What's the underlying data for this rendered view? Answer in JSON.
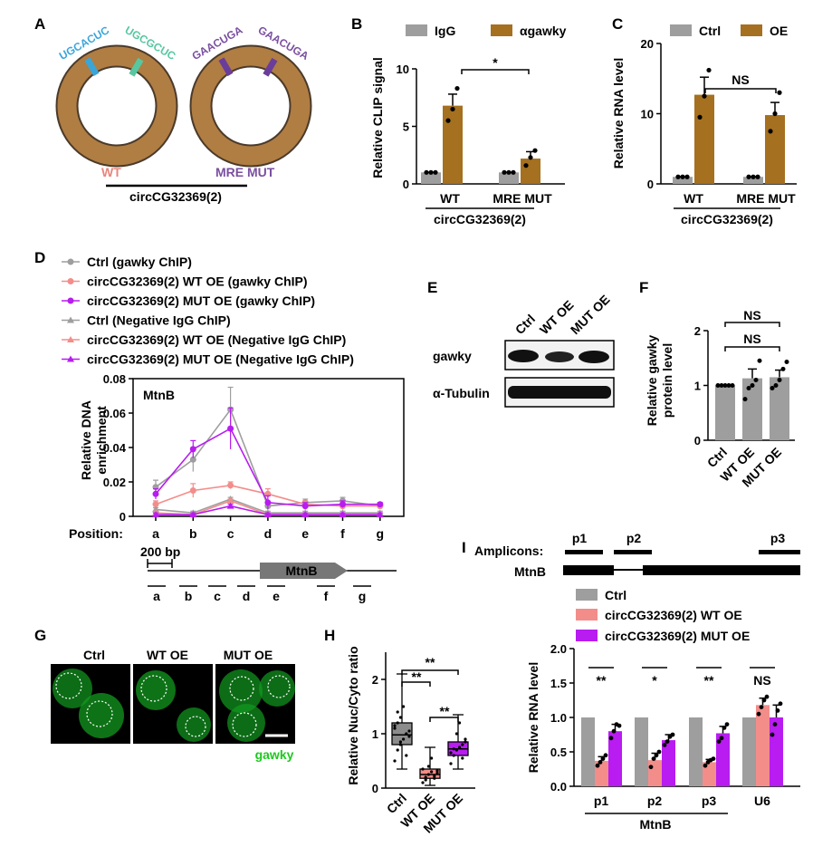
{
  "panels": {
    "A": "A",
    "B": "B",
    "C": "C",
    "D": "D",
    "E": "E",
    "F": "F",
    "G": "G",
    "H": "H",
    "I": "I"
  },
  "panelA": {
    "wt_seq1": "UGCACUC",
    "wt_seq2": "UGCGCUC",
    "mut_seq1": "GAACUGA",
    "mut_seq2": "GAACUGA",
    "wt_label": "WT",
    "mut_label": "MRE MUT",
    "construct": "circCG32369(2)",
    "colors": {
      "ring": "#b07d43",
      "ring_stroke": "#4a3a2a",
      "seed1": "#3aa6d8",
      "seed2": "#57c7a0",
      "mut_seed": "#6a3d9a",
      "wt_text": "#e8857c",
      "mut_text": "#7b4fa0"
    }
  },
  "colors": {
    "gray": "#9e9e9e",
    "brown": "#a5701f",
    "pink": "#f38d8a",
    "purple": "#b81cf0",
    "green": "#1ec81e"
  },
  "chart_data": [
    {
      "id": "B",
      "type": "bar",
      "ylabel": "Relative CLIP signal",
      "ylim": [
        0,
        10
      ],
      "yticks": [
        0,
        5,
        10
      ],
      "categories": [
        "WT",
        "MRE MUT"
      ],
      "group_label": "circCG32369(2)",
      "series": [
        {
          "name": "IgG",
          "values": [
            1,
            1
          ],
          "err": [
            0,
            0
          ]
        },
        {
          "name": "αgawky",
          "values": [
            6.8,
            2.2
          ],
          "err": [
            1.0,
            0.6
          ]
        }
      ],
      "significance": [
        {
          "label": "*"
        }
      ]
    },
    {
      "id": "C",
      "type": "bar",
      "ylabel": "Relative RNA level",
      "ylim": [
        0,
        20
      ],
      "yticks": [
        0,
        10,
        20
      ],
      "categories": [
        "WT",
        "MRE MUT"
      ],
      "group_label": "circCG32369(2)",
      "series": [
        {
          "name": "Ctrl",
          "values": [
            1,
            1
          ],
          "err": [
            0,
            0
          ]
        },
        {
          "name": "OE",
          "values": [
            12.7,
            9.8
          ],
          "err": [
            2.5,
            1.8
          ]
        }
      ],
      "significance": [
        {
          "label": "NS"
        }
      ]
    },
    {
      "id": "D",
      "type": "line",
      "title": "MtnB",
      "ylabel": "Relative DNA enrichment",
      "ylim": [
        0,
        0.08
      ],
      "yticks": [
        "0",
        "0.02",
        "0.04",
        "0.06",
        "0.08"
      ],
      "x": [
        "a",
        "b",
        "c",
        "d",
        "e",
        "f",
        "g"
      ],
      "xlabel": "Position:",
      "series": [
        {
          "name": "Ctrl (gawky ChIP)",
          "values": [
            0.017,
            0.033,
            0.062,
            0.006,
            0.008,
            0.009,
            0.006
          ],
          "err": [
            0.004,
            0.007,
            0.013,
            0.002,
            0.002,
            0.002,
            0.001
          ]
        },
        {
          "name": "circCG32369(2) WT OE (gawky ChIP)",
          "values": [
            0.007,
            0.015,
            0.018,
            0.013,
            0.007,
            0.006,
            0.006
          ],
          "err": [
            0.002,
            0.004,
            0.002,
            0.003,
            0.002,
            0.002,
            0.001
          ]
        },
        {
          "name": "circCG32369(2) MUT OE (gawky ChIP)",
          "values": [
            0.013,
            0.039,
            0.051,
            0.008,
            0.006,
            0.007,
            0.007
          ],
          "err": [
            0.003,
            0.005,
            0.012,
            0.004,
            0.002,
            0.002,
            0.001
          ]
        },
        {
          "name": "Ctrl (Negative IgG ChIP)",
          "values": [
            0.004,
            0.002,
            0.01,
            0.002,
            0.002,
            0.002,
            0.002
          ],
          "err": [
            0.001,
            0.001,
            0.001,
            0.001,
            0.001,
            0.001,
            0.001
          ]
        },
        {
          "name": "circCG32369(2) WT OE (Negative IgG ChIP)",
          "values": [
            0.002,
            0.001,
            0.009,
            0.001,
            0.001,
            0.001,
            0.001
          ],
          "err": [
            0.001,
            0.001,
            0.001,
            0.001,
            0.001,
            0.001,
            0.001
          ]
        },
        {
          "name": "circCG32369(2) MUT OE (Negative IgG ChIP)",
          "values": [
            0.001,
            0.001,
            0.006,
            0.001,
            0.001,
            0.001,
            0.001
          ],
          "err": [
            0.001,
            0.001,
            0.001,
            0.001,
            0.001,
            0.001,
            0.001
          ]
        }
      ],
      "gene_map": {
        "scale": "200 bp",
        "gene": "MtnB",
        "segments": [
          "a",
          "b",
          "c",
          "d",
          "e",
          "f",
          "g"
        ]
      }
    },
    {
      "id": "F",
      "type": "bar",
      "ylabel": "Relative gawky protein level",
      "ylim": [
        0,
        2
      ],
      "yticks": [
        0,
        1,
        2
      ],
      "categories": [
        "Ctrl",
        "WT OE",
        "MUT OE"
      ],
      "values": [
        1.0,
        1.13,
        1.15
      ],
      "err": [
        0,
        0.17,
        0.13
      ],
      "significance": [
        {
          "label": "NS"
        },
        {
          "label": "NS"
        }
      ]
    },
    {
      "id": "H",
      "type": "box",
      "ylabel": "Relative Nuc/Cyto ratio",
      "ylim": [
        0,
        2.5
      ],
      "yticks": [
        0,
        1,
        2
      ],
      "categories": [
        "Ctrl",
        "WT OE",
        "MUT OE"
      ],
      "boxes": [
        {
          "min": 0.35,
          "q1": 0.8,
          "median": 0.98,
          "q3": 1.2,
          "max": 2.1
        },
        {
          "min": 0.05,
          "q1": 0.18,
          "median": 0.25,
          "q3": 0.35,
          "max": 0.75
        },
        {
          "min": 0.35,
          "q1": 0.6,
          "median": 0.72,
          "q3": 0.85,
          "max": 1.35
        }
      ],
      "significance": [
        {
          "label": "**"
        },
        {
          "label": "**"
        },
        {
          "label": "**"
        }
      ]
    },
    {
      "id": "I",
      "type": "bar",
      "ylabel": "Relative RNA level",
      "ylim": [
        0,
        2
      ],
      "yticks": [
        "0.0",
        "0.5",
        "1.0",
        "1.5",
        "2.0"
      ],
      "categories": [
        "p1",
        "p2",
        "p3",
        "U6"
      ],
      "group_label": "MtnB",
      "series": [
        {
          "name": "Ctrl",
          "values": [
            1,
            1,
            1,
            1
          ],
          "err": [
            0,
            0,
            0,
            0
          ]
        },
        {
          "name": "circCG32369(2) WT OE",
          "values": [
            0.37,
            0.38,
            0.35,
            1.18
          ],
          "err": [
            0.06,
            0.1,
            0.04,
            0.1
          ]
        },
        {
          "name": "circCG32369(2) MUT OE",
          "values": [
            0.8,
            0.67,
            0.77,
            1.0
          ],
          "err": [
            0.1,
            0.08,
            0.1,
            0.18
          ]
        }
      ],
      "significance": [
        {
          "label": "**"
        },
        {
          "label": "*"
        },
        {
          "label": "**"
        },
        {
          "label": "NS"
        }
      ]
    }
  ],
  "panelE": {
    "lanes": [
      "Ctrl",
      "WT OE",
      "MUT OE"
    ],
    "rows": [
      "gawky",
      "α-Tubulin"
    ]
  },
  "panelG": {
    "images": [
      "Ctrl",
      "WT OE",
      "MUT OE"
    ],
    "stain": "gawky"
  },
  "panelI": {
    "amplicons_label": "Amplicons:",
    "gene": "MtnB",
    "amplicons": [
      "p1",
      "p2",
      "p3"
    ]
  }
}
